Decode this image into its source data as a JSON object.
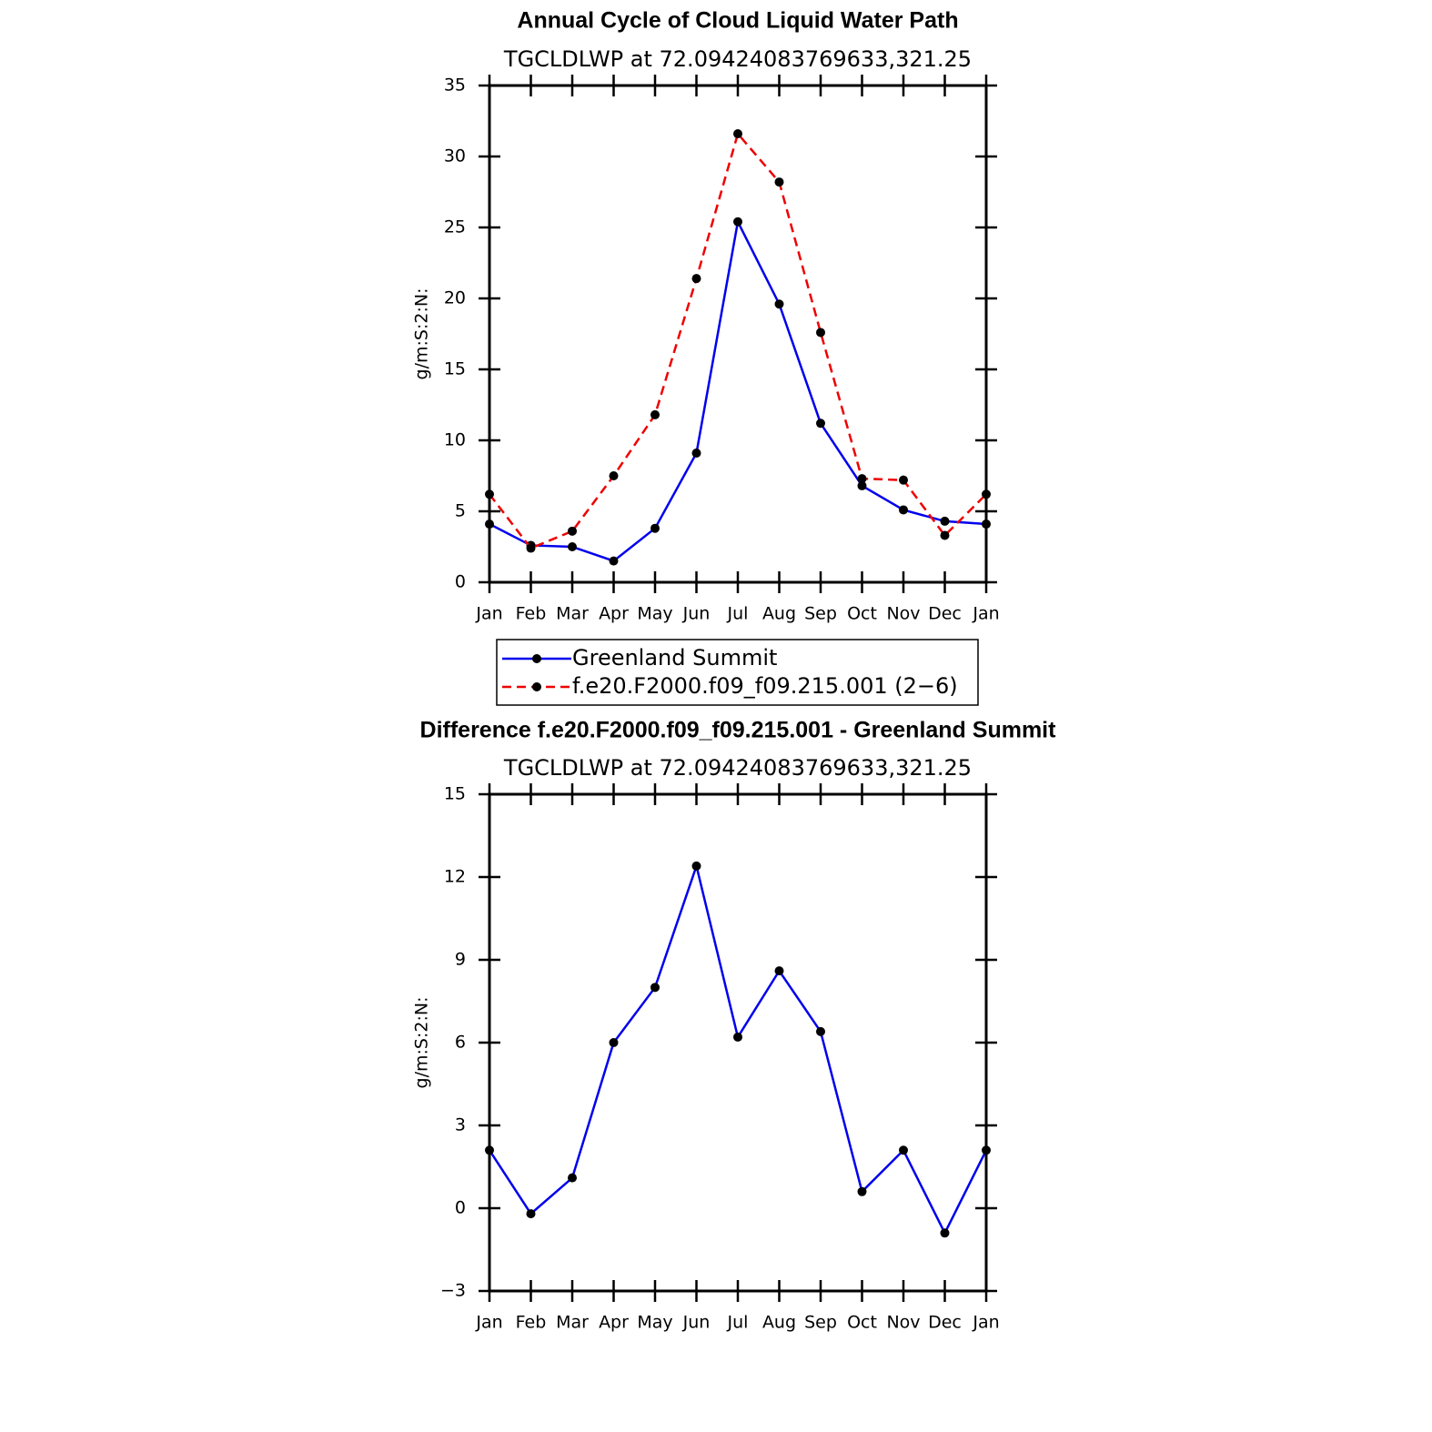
{
  "chart_data": [
    {
      "type": "line",
      "title": "Annual Cycle of Cloud Liquid Water Path",
      "subtitle": "TGCLDLWP  at  72.09424083769633,321.25",
      "ylabel": "g/m:S:2:N:",
      "categories": [
        "Jan",
        "Feb",
        "Mar",
        "Apr",
        "May",
        "Jun",
        "Jul",
        "Aug",
        "Sep",
        "Oct",
        "Nov",
        "Dec",
        "Jan"
      ],
      "series": [
        {
          "name": "Greenland Summit",
          "color": "#0000ee",
          "style": "solid",
          "values": [
            4.1,
            2.6,
            2.5,
            1.5,
            3.8,
            9.1,
            25.4,
            19.6,
            11.2,
            6.8,
            5.1,
            4.3,
            4.1
          ]
        },
        {
          "name": "f.e20.F2000.f09_f09.215.001 (2−6)",
          "color": "#ee0000",
          "style": "dashed",
          "values": [
            6.2,
            2.4,
            3.6,
            7.5,
            11.8,
            21.4,
            31.6,
            28.2,
            17.6,
            7.3,
            7.2,
            3.3,
            6.2
          ]
        }
      ],
      "ylim": [
        0,
        35
      ],
      "yticks": [
        0,
        5,
        10,
        15,
        20,
        25,
        30,
        35
      ],
      "legend": "below"
    },
    {
      "type": "line",
      "title": "Difference f.e20.F2000.f09_f09.215.001 - Greenland Summit",
      "subtitle": "TGCLDLWP  at  72.09424083769633,321.25",
      "ylabel": "g/m:S:2:N:",
      "categories": [
        "Jan",
        "Feb",
        "Mar",
        "Apr",
        "May",
        "Jun",
        "Jul",
        "Aug",
        "Sep",
        "Oct",
        "Nov",
        "Dec",
        "Jan"
      ],
      "color": "#0000ee",
      "values": [
        2.1,
        -0.2,
        1.1,
        6.0,
        8.0,
        12.4,
        6.2,
        8.6,
        6.4,
        0.6,
        2.1,
        -0.9,
        2.1
      ],
      "ylim": [
        -3,
        15
      ],
      "yticks": [
        {
          "value": -3,
          "label": "−3"
        },
        0,
        3,
        6,
        9,
        12,
        15
      ]
    }
  ]
}
